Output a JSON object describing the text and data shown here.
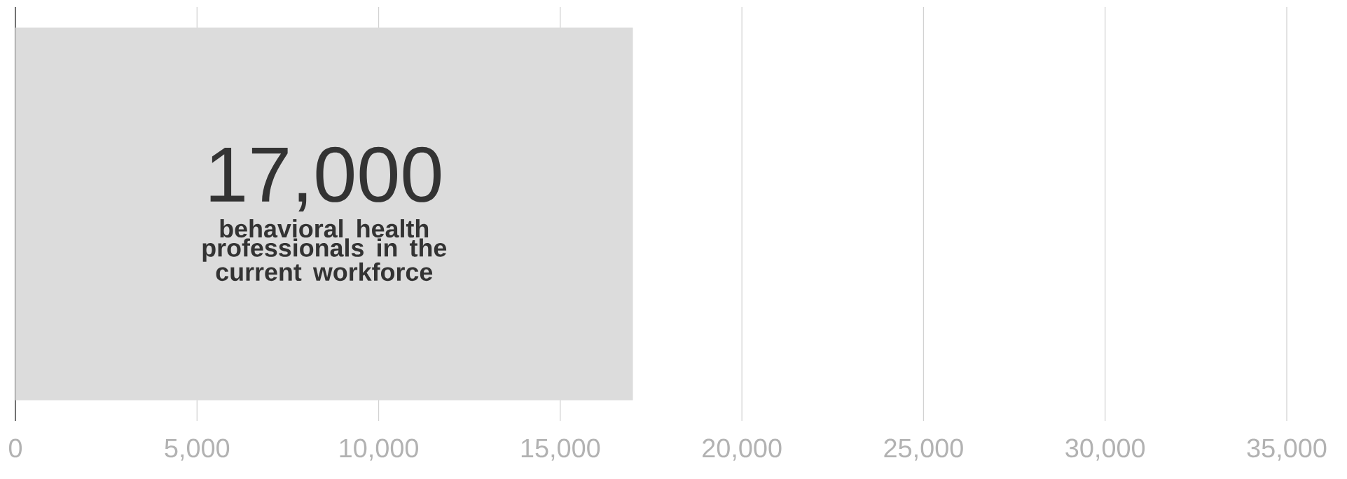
{
  "chart_data": {
    "type": "bar",
    "orientation": "horizontal",
    "categories": [
      null
    ],
    "values": [
      17000
    ],
    "value_labels": [
      "17,000"
    ],
    "color": "#dcdcdc",
    "annotations": [
      "behavioral health professionals in the current workforce"
    ],
    "xlim": [
      0,
      35000
    ],
    "xticks": [
      0,
      {
        "value": 5000,
        "label": "5,000"
      },
      {
        "value": 10000,
        "label": "10,000"
      },
      {
        "value": 15000,
        "label": "15,000"
      },
      {
        "value": 20000,
        "label": "20,000"
      },
      {
        "value": 25000,
        "label": "25,000"
      },
      {
        "value": 30000,
        "label": "30,000"
      },
      {
        "value": 35000,
        "label": "35,000"
      }
    ],
    "grid": "x"
  }
}
